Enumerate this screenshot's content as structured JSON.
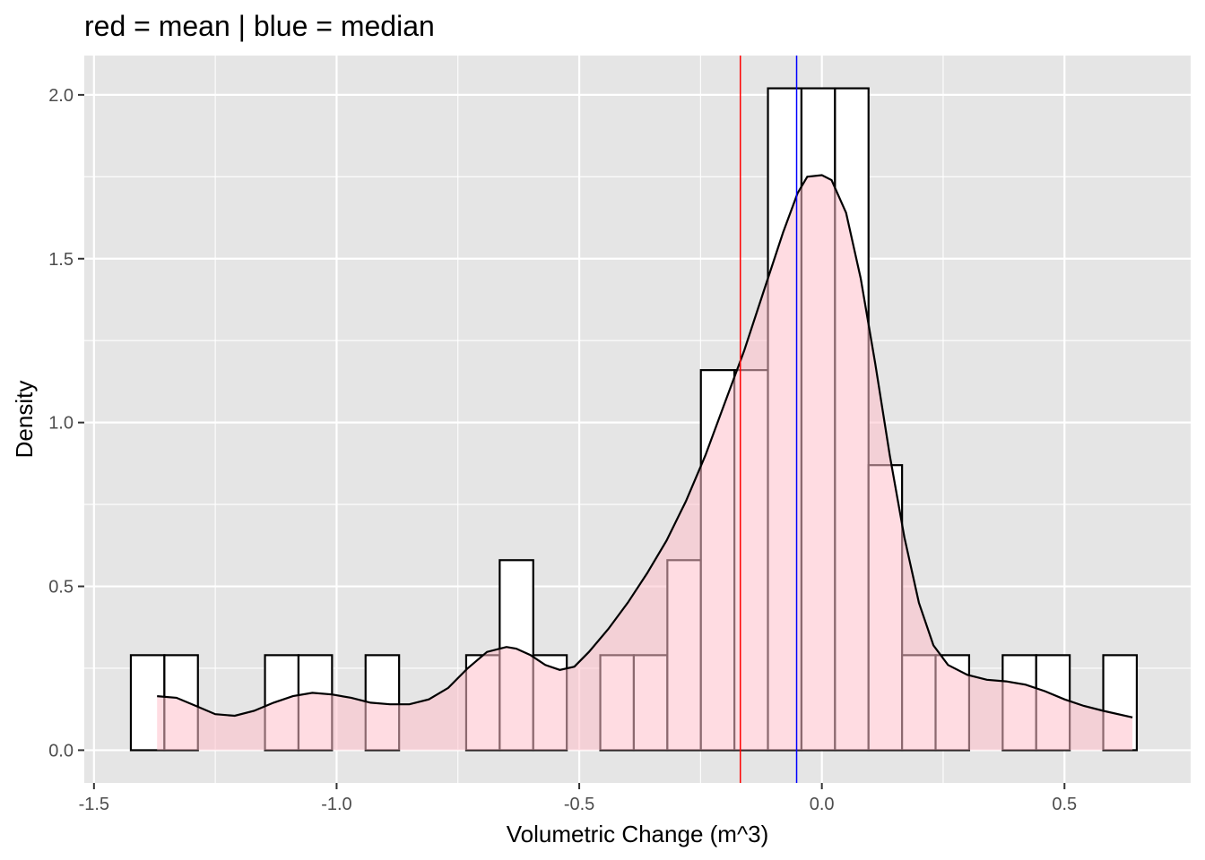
{
  "chart_data": {
    "type": "bar",
    "title": "red = mean | blue = median",
    "xlabel": "Volumetric Change (m^3)",
    "ylabel": "Density",
    "xlim": [
      -1.52,
      0.76
    ],
    "ylim": [
      -0.1,
      2.12
    ],
    "x_ticks": [
      -1.5,
      -1.0,
      -0.5,
      0.0,
      0.5
    ],
    "x_tick_labels": [
      "-1.5",
      "-1.0",
      "-0.5",
      "0.0",
      "0.5"
    ],
    "y_ticks": [
      0.0,
      0.5,
      1.0,
      1.5,
      2.0
    ],
    "y_tick_labels": [
      "0.0",
      "0.5",
      "1.0",
      "1.5",
      "2.0"
    ],
    "grid": true,
    "histogram": {
      "bin_start": -1.424,
      "bin_width": 0.0691,
      "densities": [
        0.29,
        0.29,
        0,
        0,
        0.29,
        0.29,
        0,
        0.29,
        0,
        0,
        0.29,
        0.58,
        0.29,
        0,
        0.29,
        0.29,
        0.58,
        1.16,
        1.16,
        2.02,
        2.02,
        2.02,
        0.87,
        0.29,
        0.29,
        0,
        0.29,
        0.29,
        0,
        0.29
      ],
      "fill_color": "#ffffff",
      "outline_color": "#000000"
    },
    "density_curve": {
      "x": [
        -1.37,
        -1.33,
        -1.29,
        -1.25,
        -1.21,
        -1.17,
        -1.13,
        -1.09,
        -1.05,
        -1.01,
        -0.97,
        -0.93,
        -0.89,
        -0.85,
        -0.81,
        -0.77,
        -0.73,
        -0.69,
        -0.65,
        -0.63,
        -0.6,
        -0.57,
        -0.54,
        -0.51,
        -0.48,
        -0.44,
        -0.4,
        -0.36,
        -0.32,
        -0.28,
        -0.24,
        -0.2,
        -0.16,
        -0.12,
        -0.08,
        -0.05,
        -0.03,
        0.0,
        0.02,
        0.05,
        0.08,
        0.11,
        0.14,
        0.17,
        0.2,
        0.23,
        0.26,
        0.3,
        0.34,
        0.38,
        0.42,
        0.46,
        0.5,
        0.54,
        0.58,
        0.64
      ],
      "y": [
        0.165,
        0.16,
        0.135,
        0.11,
        0.105,
        0.12,
        0.145,
        0.165,
        0.175,
        0.17,
        0.16,
        0.145,
        0.14,
        0.14,
        0.155,
        0.19,
        0.25,
        0.3,
        0.315,
        0.31,
        0.29,
        0.26,
        0.245,
        0.255,
        0.3,
        0.37,
        0.45,
        0.54,
        0.64,
        0.76,
        0.9,
        1.06,
        1.22,
        1.4,
        1.58,
        1.7,
        1.75,
        1.755,
        1.74,
        1.64,
        1.44,
        1.18,
        0.9,
        0.65,
        0.45,
        0.32,
        0.26,
        0.23,
        0.215,
        0.21,
        0.2,
        0.18,
        0.155,
        0.135,
        0.12,
        0.1
      ],
      "fill_color": "#ffc0cb",
      "fill_opacity": 0.55,
      "line_color": "#000000"
    },
    "reference_lines": [
      {
        "stat": "mean",
        "x": -0.168,
        "color": "#ff0000"
      },
      {
        "stat": "median",
        "x": -0.052,
        "color": "#0000ff"
      }
    ],
    "panel_color": "#e5e5e5"
  }
}
